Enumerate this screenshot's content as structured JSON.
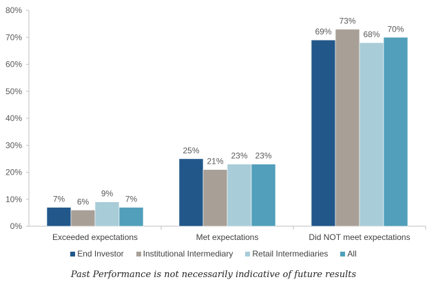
{
  "chart_data": {
    "type": "bar",
    "title": "",
    "xlabel": "",
    "ylabel": "",
    "ylim": [
      0,
      80
    ],
    "yticks": [
      0,
      10,
      20,
      30,
      40,
      50,
      60,
      70,
      80
    ],
    "ytick_format": "%",
    "grid": false,
    "categories": [
      "Exceeded expectations",
      "Met expectations",
      "Did NOT meet expectations"
    ],
    "series": [
      {
        "name": "End Investor",
        "color": "#22578a",
        "values": [
          7,
          25,
          69
        ]
      },
      {
        "name": "Institutional Intermediary",
        "color": "#a8a097",
        "values": [
          6,
          21,
          73
        ]
      },
      {
        "name": "Retail Intermediaries",
        "color": "#a8ccd8",
        "values": [
          9,
          23,
          68
        ]
      },
      {
        "name": "All",
        "color": "#519fba",
        "values": [
          7,
          23,
          70
        ]
      }
    ],
    "legend_position": "bottom",
    "data_labels": true
  },
  "footnote": "Past Performance is not necessarily indicative of future results"
}
